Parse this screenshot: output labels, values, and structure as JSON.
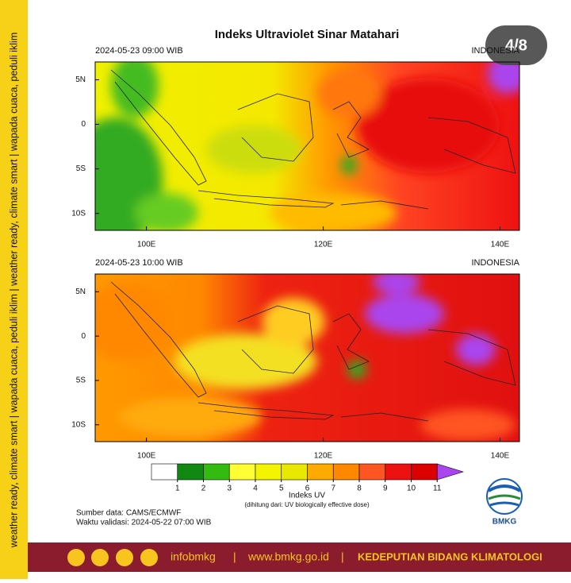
{
  "side_text": "weather ready, climate smart  |  wapada cuaca, peduli iklim  |  weather ready, climate smart  |  wapada cuaca, peduli iklim",
  "page_indicator": "4/8",
  "title": "Indeks Ultraviolet Sinar Matahari",
  "map": {
    "lonlim": [
      94.2,
      142.2
    ],
    "latlim": [
      -11.9,
      7
    ],
    "lonticks": [
      {
        "value": 100,
        "label": "100E"
      },
      {
        "value": 120,
        "label": "120E"
      },
      {
        "value": 140,
        "label": "140E"
      }
    ],
    "latticks": [
      {
        "value": 5,
        "label": "5N"
      },
      0,
      {
        "value": -5,
        "label": "5S"
      },
      {
        "value": -10,
        "label": "10S"
      }
    ]
  },
  "panels": [
    {
      "time": "2024-05-23  09:00 WIB",
      "region": "INDONESIA"
    },
    {
      "time": "2024-05-23  10:00 WIB",
      "region": "INDONESIA"
    }
  ],
  "colorbar": {
    "ticks": [
      1,
      2,
      3,
      4,
      5,
      6,
      7,
      8,
      9,
      10,
      11
    ],
    "colors": [
      "#ffffff",
      "#118811",
      "#33bb11",
      "#ffff33",
      "#f4f400",
      "#e8e800",
      "#ffaa00",
      "#ff8800",
      "#ff5522",
      "#ee1111",
      "#dd0000",
      "#aa44ee"
    ],
    "label": "Indeks UV",
    "note": "(dihitung dari: UV biologically effective dose)"
  },
  "source": "Sumber data: CAMS/ECMWF",
  "validity": "Waktu validasi: 2024-05-22 07:00 WIB",
  "logo": "BMKG",
  "footer": {
    "handle": "infobmkg",
    "separator": "|",
    "website": "www.bmkg.go.id",
    "department": "KEDEPUTIAN BIDANG KLIMATOLOGI"
  }
}
